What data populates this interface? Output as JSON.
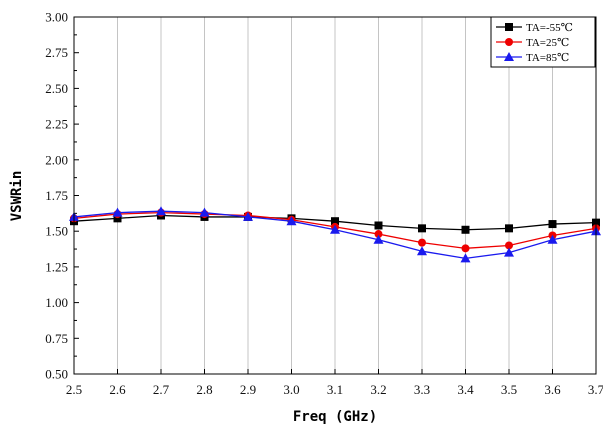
{
  "chart_data": {
    "type": "line",
    "xlabel": "Freq (GHz)",
    "ylabel": "VSWRin",
    "xlim": [
      2.5,
      3.7
    ],
    "ylim": [
      0.5,
      3.0
    ],
    "x_ticks": [
      "2.5",
      "2.6",
      "2.7",
      "2.8",
      "2.9",
      "3.0",
      "3.1",
      "3.2",
      "3.3",
      "3.4",
      "3.5",
      "3.6",
      "3.7"
    ],
    "y_ticks": [
      "0.50",
      "0.75",
      "1.00",
      "1.25",
      "1.50",
      "1.75",
      "2.00",
      "2.25",
      "2.50",
      "2.75",
      "3.00"
    ],
    "grid": "vertical",
    "legend_position": "top-right",
    "x": [
      2.5,
      2.6,
      2.7,
      2.8,
      2.9,
      3.0,
      3.1,
      3.2,
      3.3,
      3.4,
      3.5,
      3.6,
      3.7
    ],
    "series": [
      {
        "name": "TA=-55℃",
        "color": "#000000",
        "marker": "square",
        "values": [
          1.57,
          1.59,
          1.61,
          1.6,
          1.6,
          1.59,
          1.57,
          1.54,
          1.52,
          1.51,
          1.52,
          1.55,
          1.56
        ]
      },
      {
        "name": "TA=25℃",
        "color": "#ee0000",
        "marker": "circle",
        "values": [
          1.59,
          1.62,
          1.63,
          1.62,
          1.61,
          1.58,
          1.53,
          1.48,
          1.42,
          1.38,
          1.4,
          1.47,
          1.52
        ]
      },
      {
        "name": "TA=85℃",
        "color": "#1a1aee",
        "marker": "triangle",
        "values": [
          1.6,
          1.63,
          1.64,
          1.63,
          1.6,
          1.57,
          1.51,
          1.44,
          1.36,
          1.31,
          1.35,
          1.44,
          1.5
        ]
      }
    ]
  }
}
